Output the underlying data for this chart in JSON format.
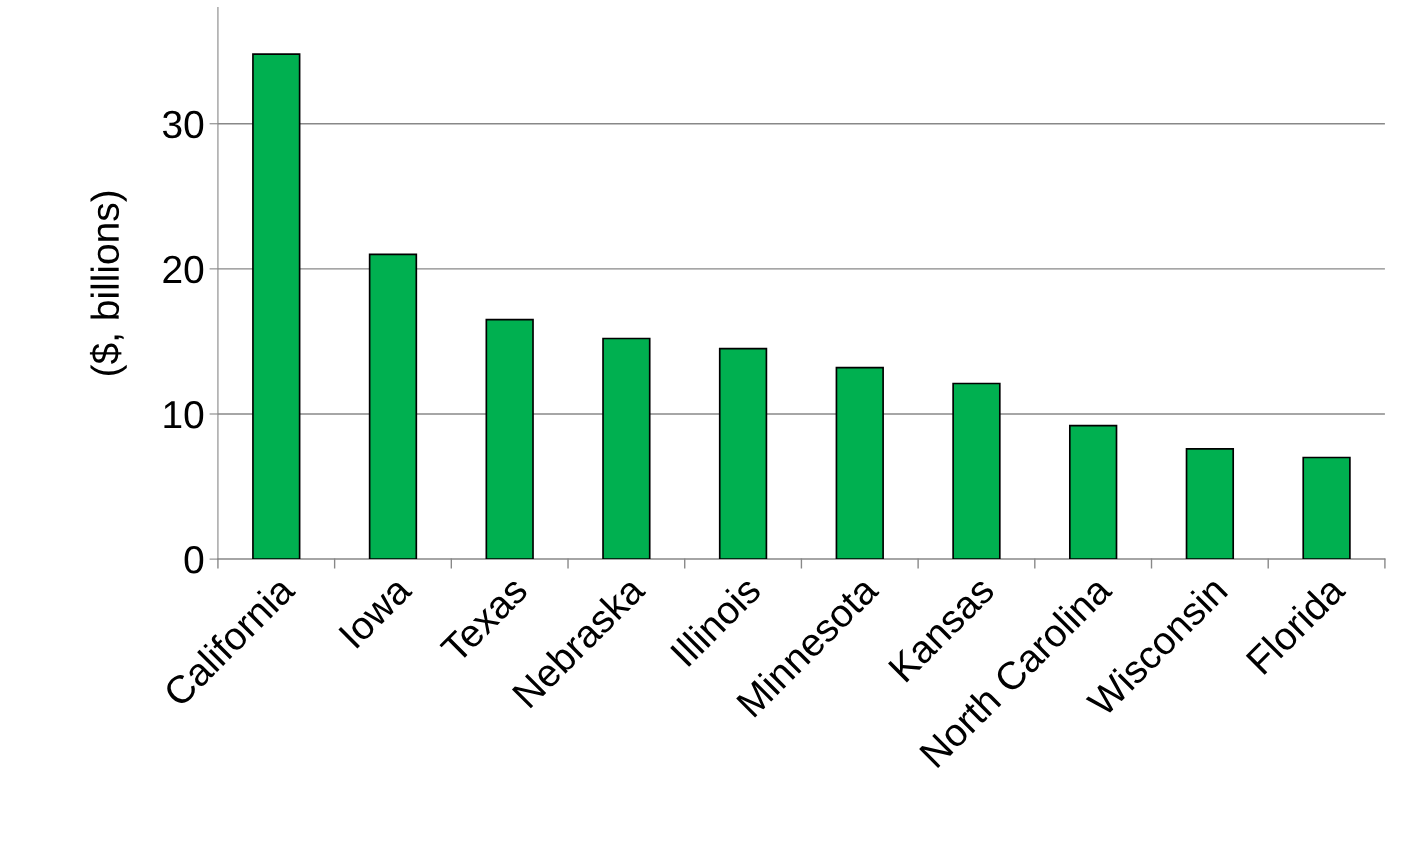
{
  "chart_data": {
    "type": "bar",
    "ylabel": "($, billions)",
    "categories": [
      "California",
      "Iowa",
      "Texas",
      "Nebraska",
      "Illinois",
      "Minnesota",
      "Kansas",
      "North Carolina",
      "Wisconsin",
      "Florida"
    ],
    "values": [
      34.8,
      21.0,
      16.5,
      15.2,
      14.5,
      13.2,
      12.1,
      9.2,
      7.6,
      7.0
    ],
    "color": "#00b050",
    "ylim": [
      0,
      38
    ],
    "yticks": [
      0,
      10,
      20,
      30
    ],
    "grid": "y",
    "legend": false
  }
}
